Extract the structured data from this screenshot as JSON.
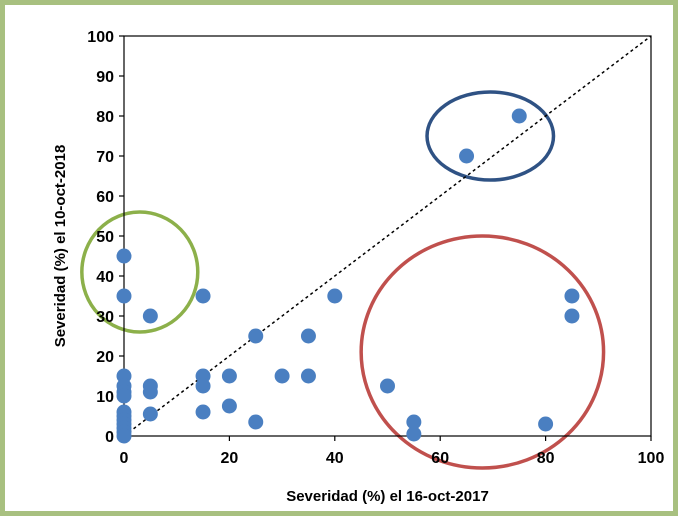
{
  "chart_data": {
    "type": "scatter",
    "title": "",
    "xlabel": "Severidad (%) el 16-oct-2017",
    "ylabel": "Severidad (%) el 10-oct-2018",
    "xlim": [
      0,
      100
    ],
    "ylim": [
      0,
      100
    ],
    "x_ticks": [
      "0",
      "20",
      "40",
      "60",
      "80",
      "100"
    ],
    "y_ticks": [
      "0",
      "10",
      "20",
      "30",
      "40",
      "50",
      "60",
      "70",
      "80",
      "90",
      "100"
    ],
    "grid": false,
    "legend": "none",
    "marker_color": "#4a7fc1",
    "reference_line": {
      "style": "dashed",
      "from": [
        0,
        0
      ],
      "to": [
        100,
        100
      ],
      "color": "#000000"
    },
    "series": [
      {
        "points": [
          [
            0,
            45
          ],
          [
            0,
            35
          ],
          [
            0,
            15
          ],
          [
            0,
            12.5
          ],
          [
            0,
            11
          ],
          [
            0,
            10
          ],
          [
            0,
            6
          ],
          [
            0,
            5
          ],
          [
            0,
            4
          ],
          [
            0,
            3
          ],
          [
            0,
            2
          ],
          [
            0,
            1
          ],
          [
            0,
            0
          ],
          [
            5,
            30
          ],
          [
            5,
            12.5
          ],
          [
            5,
            11
          ],
          [
            5,
            5.5
          ],
          [
            15,
            35
          ],
          [
            15,
            15
          ],
          [
            15,
            12.5
          ],
          [
            15,
            6
          ],
          [
            20,
            15
          ],
          [
            20,
            7.5
          ],
          [
            25,
            25
          ],
          [
            25,
            3.5
          ],
          [
            30,
            15
          ],
          [
            35,
            25
          ],
          [
            35,
            15
          ],
          [
            40,
            35
          ],
          [
            50,
            12.5
          ],
          [
            55,
            3.5
          ],
          [
            55,
            0.5
          ],
          [
            65,
            70
          ],
          [
            75,
            80
          ],
          [
            80,
            3
          ],
          [
            85,
            35
          ],
          [
            85,
            30
          ]
        ]
      }
    ],
    "annotations": [
      {
        "shape": "ellipse",
        "color": "#8cb04a",
        "center": [
          3,
          41
        ],
        "radii": [
          11,
          15
        ]
      },
      {
        "shape": "ellipse",
        "color": "#2f5284",
        "center": [
          69.5,
          75
        ],
        "radii": [
          12,
          11
        ]
      },
      {
        "shape": "ellipse",
        "color": "#c0504d",
        "center": [
          68,
          21
        ],
        "radii": [
          23,
          29
        ]
      }
    ]
  }
}
